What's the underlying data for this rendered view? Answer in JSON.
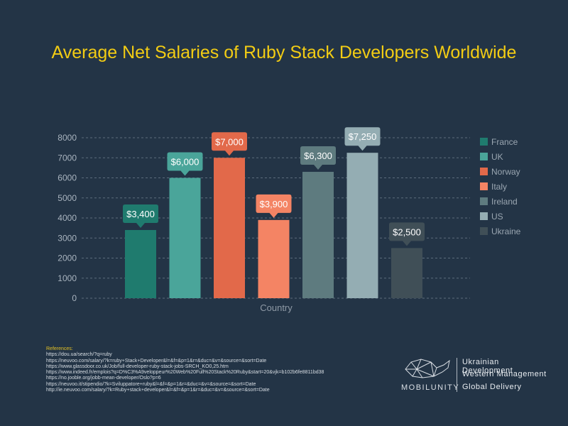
{
  "chart_data": {
    "type": "bar",
    "title": "Average Net Salaries of Ruby Stack Developers Worldwide",
    "xlabel": "Country",
    "ylabel": "",
    "ylim": [
      0,
      8000
    ],
    "yticks": [
      "0",
      "1000",
      "2000",
      "3000",
      "4000",
      "5000",
      "6000",
      "7000",
      "8000"
    ],
    "categories": [
      "France",
      "UK",
      "Norway",
      "Italy",
      "Ireland",
      "US",
      "Ukraine"
    ],
    "values": [
      3400,
      6000,
      7000,
      3900,
      6300,
      7250,
      2500
    ],
    "data_labels": [
      "$3,400",
      "$6,000",
      "$7,000",
      "$3,900",
      "$6,300",
      "$7,250",
      "$2,500"
    ],
    "colors": [
      "#1f7b6e",
      "#4aa59a",
      "#e2694a",
      "#f48464",
      "#5e7b7f",
      "#94adb3",
      "#404f57"
    ],
    "legend_position": "right",
    "grid": true
  },
  "references": {
    "heading": "References:",
    "urls": [
      "https://dou.ua/search/?q=ruby",
      "https://neuvoo.com/salary/?k=ruby+Stack+Developer&l=&f=&p=1&r=&duc=&v=&source=&sort=Date",
      "https://www.glassdoor.co.uk/Job/full-developer-ruby-stack-jobs-SRCH_KO0,25.htm",
      "https://www.indeed.fr/emplois?q=D%C3%A9veloppeur%20Web%20Full%20Stack%20Ruby&start=20&vjk=b102b6fe8811bd38",
      "https://no.jooble.org/jobb-mean-developer/Oslo?p=6",
      "https://neuvoo.it/stipendio/?k=Sviluppatore+ruby&l=&f=&p=1&r=&duc=&v=&source=&sort=Date",
      "http://ie.neuvoo.com/salary/?k=Ruby+stack+developer&l=&f=&p=1&r=&duc=&v=&source=&sort=Date"
    ]
  },
  "brand": {
    "name": "MOBILUNITY",
    "taglines": [
      "Ukrainian Development",
      "Western Management",
      "Global Delivery"
    ]
  }
}
